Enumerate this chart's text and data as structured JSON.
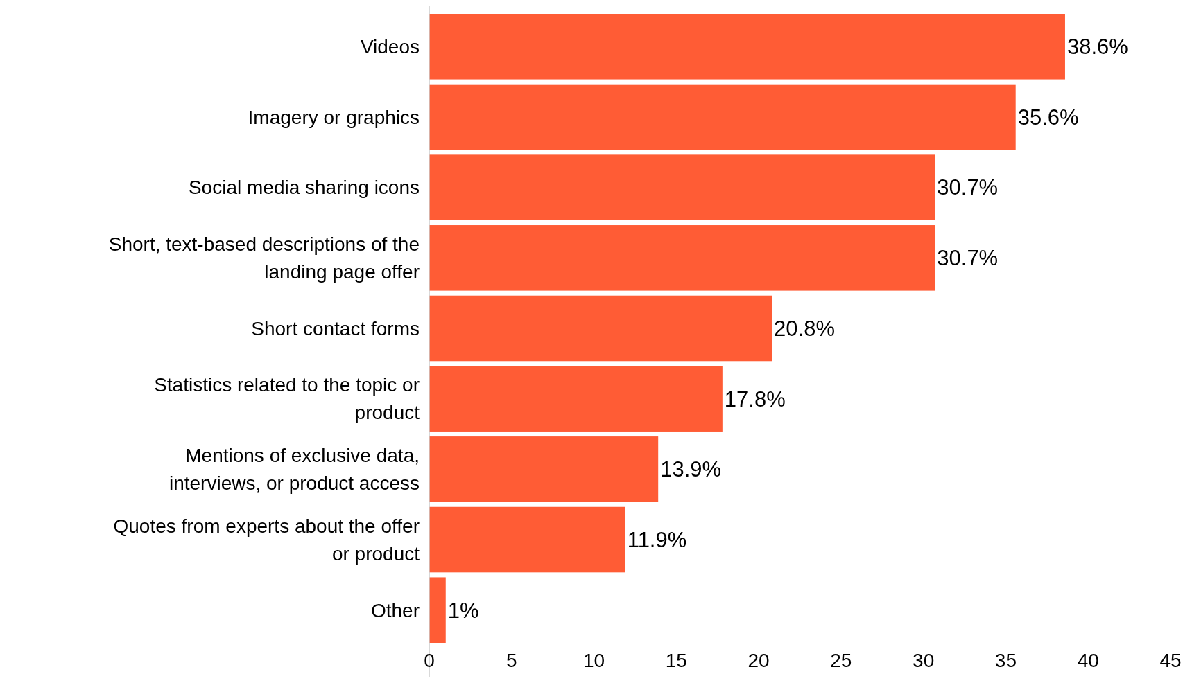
{
  "chart_data": {
    "type": "bar",
    "orientation": "horizontal",
    "categories": [
      "Videos",
      "Imagery or graphics",
      "Social media sharing icons",
      "Short, text-based descriptions of the landing page offer",
      "Short contact forms",
      "Statistics related to the topic or product",
      "Mentions of exclusive data, interviews, or product access",
      "Quotes from experts about the offer or product",
      "Other"
    ],
    "values": [
      38.6,
      35.6,
      30.7,
      30.7,
      20.8,
      17.8,
      13.9,
      11.9,
      1
    ],
    "value_labels": [
      "38.6%",
      "35.6%",
      "30.7%",
      "30.7%",
      "20.8%",
      "17.8%",
      "13.9%",
      "11.9%",
      "1%"
    ],
    "color": "#ff5c35",
    "xlim": [
      0,
      45
    ],
    "xticks": [
      0,
      5,
      10,
      15,
      20,
      25,
      30,
      35,
      40,
      45
    ],
    "grid": false
  }
}
